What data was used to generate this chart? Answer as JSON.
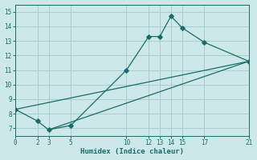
{
  "xlabel": "Humidex (Indice chaleur)",
  "bg_color": "#cce8e8",
  "grid_color": "#a8cccc",
  "line_color": "#1a6b6b",
  "xlim": [
    0,
    21
  ],
  "ylim": [
    6.5,
    15.5
  ],
  "xticks": [
    0,
    2,
    3,
    5,
    10,
    12,
    13,
    14,
    15,
    17,
    21
  ],
  "yticks": [
    7,
    8,
    9,
    10,
    11,
    12,
    13,
    14,
    15
  ],
  "series": [
    {
      "x": [
        0,
        2,
        3,
        5,
        10,
        12,
        13,
        14,
        15,
        17,
        21
      ],
      "y": [
        8.3,
        7.5,
        6.9,
        7.2,
        11.0,
        13.3,
        13.3,
        14.7,
        13.9,
        12.9,
        11.6
      ],
      "marker": true
    },
    {
      "x": [
        0,
        21
      ],
      "y": [
        8.3,
        11.6
      ],
      "marker": false
    },
    {
      "x": [
        3,
        21
      ],
      "y": [
        6.9,
        11.6
      ],
      "marker": false
    }
  ]
}
